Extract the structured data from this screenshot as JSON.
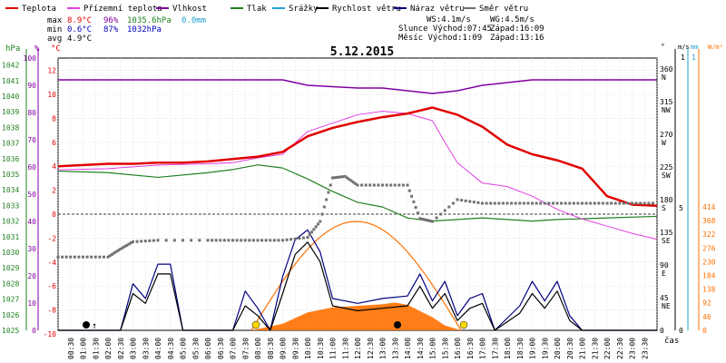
{
  "legend": [
    {
      "key": "temp",
      "label": "Teplota",
      "color": "#e00000"
    },
    {
      "key": "feels",
      "label": "Přízemní teplota",
      "color": "#e040e0"
    },
    {
      "key": "hum",
      "label": "Vlhkost",
      "color": "#8000a0"
    },
    {
      "key": "press",
      "label": "Tlak",
      "color": "#208020"
    },
    {
      "key": "rain",
      "label": "Srážky",
      "color": "#20a0d0"
    },
    {
      "key": "wind",
      "label": "Rychlost větru",
      "color": "#000000"
    },
    {
      "key": "gust",
      "label": "Náraz větru",
      "color": "#000080"
    },
    {
      "key": "dir",
      "label": "Směr větru",
      "color": "#707070"
    }
  ],
  "stats": {
    "max": {
      "label": "max",
      "temp": "8.9°C",
      "hum": "96%",
      "press": "1035.6hPa",
      "rain": "0.0mm"
    },
    "min": {
      "label": "min",
      "temp": "0.6°C",
      "hum": "87%",
      "press": "1032hPa"
    },
    "avg": {
      "label": "avg",
      "temp": "4.9°C"
    }
  },
  "info": {
    "ws": "WS:4.1m/s",
    "wg": "WG:4.5m/s",
    "sun_rise": "Slunce Východ:07:45",
    "sun_set": "Západ:16:09",
    "moon_rise": "Měsíc Východ:1:09",
    "moon_set": "Západ:13:16"
  },
  "title": "5.12.2015",
  "colors": {
    "temp": "#e00000",
    "feels": "#e040e0",
    "hum": "#8000a0",
    "press": "#208020",
    "rain": "#20a0d0",
    "wind": "#000000",
    "gust": "#000080",
    "dir": "#707070",
    "sun": "#ff7000",
    "moon": "#ff8c00",
    "grid": "#d0d0d0"
  },
  "axes": {
    "hpa": {
      "unit": "hPa",
      "ticks": [
        "1042",
        "1041",
        "1040",
        "1039",
        "1038",
        "1037",
        "1036",
        "1035",
        "1034",
        "1033",
        "1032",
        "1031",
        "1030",
        "1029",
        "1028",
        "1027",
        "1026",
        "1025"
      ]
    },
    "pct": {
      "unit": "%",
      "ticks": [
        "100",
        "90",
        "80",
        "70",
        "60",
        "50",
        "40",
        "30",
        "20",
        "10",
        "0"
      ]
    },
    "degc": {
      "unit": "°C",
      "ticks": [
        "12",
        "10",
        "8",
        "6",
        "4",
        "2",
        "0",
        "-2",
        "-4",
        "-6",
        "-8",
        "-10"
      ]
    },
    "deg": {
      "unit": "°",
      "ticks": [
        {
          "v": "360",
          "s": "N"
        },
        {
          "v": "315",
          "s": "NW"
        },
        {
          "v": "270",
          "s": "W"
        },
        {
          "v": "225",
          "s": "SW"
        },
        {
          "v": "180",
          "s": "S"
        },
        {
          "v": "135",
          "s": "SE"
        },
        {
          "v": "90",
          "s": "E"
        },
        {
          "v": "45",
          "s": "NE"
        },
        {
          "v": "0",
          "s": ""
        }
      ]
    },
    "ms": {
      "unit": "m/s",
      "top": "1",
      "ticks": [
        "5",
        "0"
      ]
    },
    "mm": {
      "unit": "mm",
      "top": "1"
    },
    "wm2": {
      "unit": "W/m²",
      "ticks": [
        "414",
        "368",
        "322",
        "276",
        "230",
        "184",
        "138",
        "92",
        "46",
        "0"
      ]
    },
    "time_label": "čas",
    "times": [
      "00:30",
      "01:00",
      "01:30",
      "02:00",
      "02:30",
      "03:00",
      "03:30",
      "04:00",
      "04:30",
      "05:00",
      "05:30",
      "06:00",
      "06:30",
      "07:00",
      "07:30",
      "08:00",
      "08:30",
      "09:00",
      "09:30",
      "10:00",
      "10:30",
      "11:00",
      "11:30",
      "12:00",
      "12:30",
      "13:00",
      "13:30",
      "14:00",
      "14:30",
      "15:00",
      "15:30",
      "16:00",
      "16:30",
      "17:00",
      "17:30",
      "18:00",
      "18:30",
      "19:00",
      "19:30",
      "20:00",
      "20:30",
      "21:00",
      "21:30",
      "22:00",
      "22:30",
      "23:00",
      "23:30"
    ]
  },
  "chart_data": {
    "type": "line",
    "title": "5.12.2015",
    "x_unit": "hour of day",
    "xlim": [
      0,
      24
    ],
    "series": [
      {
        "name": "Teplota",
        "axis": "°C",
        "points": [
          [
            0,
            4
          ],
          [
            1,
            4.1
          ],
          [
            2,
            4.2
          ],
          [
            3,
            4.2
          ],
          [
            4,
            4.3
          ],
          [
            5,
            4.3
          ],
          [
            6,
            4.4
          ],
          [
            7,
            4.6
          ],
          [
            8,
            4.8
          ],
          [
            9,
            5.2
          ],
          [
            10,
            6.5
          ],
          [
            11,
            7.2
          ],
          [
            12,
            7.7
          ],
          [
            13,
            8.1
          ],
          [
            14,
            8.4
          ],
          [
            15,
            8.9
          ],
          [
            16,
            8.3
          ],
          [
            17,
            7.3
          ],
          [
            18,
            5.8
          ],
          [
            19,
            5.0
          ],
          [
            20,
            4.5
          ],
          [
            21,
            3.8
          ],
          [
            22,
            1.5
          ],
          [
            23,
            0.8
          ],
          [
            24,
            0.7
          ]
        ]
      },
      {
        "name": "Přízemní teplota",
        "axis": "°C",
        "points": [
          [
            0,
            3.7
          ],
          [
            2,
            3.8
          ],
          [
            4,
            4.1
          ],
          [
            6,
            4.2
          ],
          [
            7,
            4.3
          ],
          [
            8,
            4.7
          ],
          [
            9,
            5.0
          ],
          [
            10,
            6.9
          ],
          [
            11,
            7.6
          ],
          [
            12,
            8.3
          ],
          [
            13,
            8.6
          ],
          [
            14,
            8.4
          ],
          [
            15,
            7.8
          ],
          [
            15.5,
            6.0
          ],
          [
            16,
            4.3
          ],
          [
            17,
            2.6
          ],
          [
            18,
            2.3
          ],
          [
            19,
            1.5
          ],
          [
            20,
            0.4
          ],
          [
            21,
            -0.4
          ],
          [
            22,
            -1.0
          ],
          [
            23,
            -1.6
          ],
          [
            24,
            -2.1
          ]
        ]
      },
      {
        "name": "Vlhkost",
        "axis": "%",
        "points": [
          [
            0,
            92
          ],
          [
            9,
            92
          ],
          [
            10,
            90
          ],
          [
            12,
            89
          ],
          [
            13,
            89
          ],
          [
            14,
            88
          ],
          [
            15,
            87
          ],
          [
            16,
            88
          ],
          [
            17,
            90
          ],
          [
            18,
            91
          ],
          [
            19,
            92
          ],
          [
            24,
            92
          ]
        ]
      },
      {
        "name": "Tlak",
        "axis": "hPa",
        "points": [
          [
            0,
            1035.2
          ],
          [
            2,
            1035.1
          ],
          [
            4,
            1034.8
          ],
          [
            6,
            1035.1
          ],
          [
            7,
            1035.3
          ],
          [
            8,
            1035.6
          ],
          [
            9,
            1035.4
          ],
          [
            10,
            1034.7
          ],
          [
            11,
            1033.9
          ],
          [
            12,
            1033.2
          ],
          [
            13,
            1032.9
          ],
          [
            14,
            1032.2
          ],
          [
            15,
            1032.0
          ],
          [
            16,
            1032.1
          ],
          [
            17,
            1032.2
          ],
          [
            18,
            1032.1
          ],
          [
            19,
            1032.0
          ],
          [
            20,
            1032.1
          ],
          [
            22,
            1032.2
          ],
          [
            24,
            1032.3
          ]
        ]
      },
      {
        "name": "Rychlost větru",
        "axis": "m/s",
        "points": [
          [
            0,
            0
          ],
          [
            2.5,
            0
          ],
          [
            3,
            1.5
          ],
          [
            3.5,
            1.1
          ],
          [
            4,
            2.3
          ],
          [
            4.5,
            2.3
          ],
          [
            5,
            0
          ],
          [
            7,
            0
          ],
          [
            7.5,
            1.0
          ],
          [
            8,
            0.6
          ],
          [
            8.5,
            0
          ],
          [
            9,
            1.5
          ],
          [
            9.5,
            3.1
          ],
          [
            10,
            3.6
          ],
          [
            10.5,
            2.8
          ],
          [
            11,
            1.0
          ],
          [
            12,
            0.8
          ],
          [
            13,
            0.9
          ],
          [
            14,
            1.0
          ],
          [
            14.5,
            1.8
          ],
          [
            15,
            0.9
          ],
          [
            15.5,
            1.5
          ],
          [
            16,
            0.4
          ],
          [
            16.5,
            0.9
          ],
          [
            17,
            1.1
          ],
          [
            17.5,
            0
          ],
          [
            18.5,
            0.7
          ],
          [
            19,
            1.5
          ],
          [
            19.5,
            0.9
          ],
          [
            20,
            1.6
          ],
          [
            20.5,
            0.4
          ],
          [
            21,
            0
          ],
          [
            24,
            0
          ]
        ]
      },
      {
        "name": "Náraz větru",
        "axis": "m/s",
        "points": [
          [
            0,
            0
          ],
          [
            2.5,
            0
          ],
          [
            3,
            1.9
          ],
          [
            3.5,
            1.3
          ],
          [
            4,
            2.7
          ],
          [
            4.5,
            2.7
          ],
          [
            5,
            0
          ],
          [
            7,
            0
          ],
          [
            7.5,
            1.6
          ],
          [
            8,
            0.9
          ],
          [
            8.5,
            0
          ],
          [
            9,
            2.2
          ],
          [
            9.5,
            3.7
          ],
          [
            10,
            4.1
          ],
          [
            10.5,
            3.2
          ],
          [
            11,
            1.3
          ],
          [
            12,
            1.1
          ],
          [
            13,
            1.3
          ],
          [
            14,
            1.4
          ],
          [
            14.5,
            2.3
          ],
          [
            15,
            1.2
          ],
          [
            15.5,
            2.0
          ],
          [
            16,
            0.6
          ],
          [
            16.5,
            1.3
          ],
          [
            17,
            1.5
          ],
          [
            17.5,
            0
          ],
          [
            18.5,
            1.0
          ],
          [
            19,
            2.0
          ],
          [
            19.5,
            1.2
          ],
          [
            20,
            2.0
          ],
          [
            20.5,
            0.6
          ],
          [
            21,
            0
          ],
          [
            24,
            0
          ]
        ]
      },
      {
        "name": "Směr větru",
        "axis": "°",
        "points": [
          [
            0,
            101
          ],
          [
            1,
            101
          ],
          [
            2,
            101
          ],
          [
            2.5,
            112
          ],
          [
            3,
            122
          ],
          [
            4,
            124
          ],
          [
            6,
            124
          ],
          [
            7,
            124
          ],
          [
            8,
            124
          ],
          [
            9,
            124
          ],
          [
            10,
            128
          ],
          [
            10.5,
            150
          ],
          [
            11,
            210
          ],
          [
            11.5,
            212
          ],
          [
            12,
            200
          ],
          [
            13,
            200
          ],
          [
            14,
            200
          ],
          [
            14.5,
            154
          ],
          [
            15,
            150
          ],
          [
            16,
            180
          ],
          [
            17,
            175
          ],
          [
            18,
            175
          ],
          [
            19,
            175
          ],
          [
            20,
            175
          ],
          [
            21,
            175
          ],
          [
            22,
            175
          ],
          [
            23,
            175
          ],
          [
            24,
            175
          ]
        ]
      }
    ],
    "solar_radiation": {
      "axis": "W/m²",
      "points": [
        [
          7.75,
          0
        ],
        [
          9,
          20
        ],
        [
          10,
          55
        ],
        [
          11,
          70
        ],
        [
          12,
          75
        ],
        [
          13,
          80
        ],
        [
          13.5,
          85
        ],
        [
          14,
          78
        ],
        [
          15,
          40
        ],
        [
          15.5,
          15
        ],
        [
          16.15,
          0
        ]
      ]
    },
    "sun_elevation_curve": {
      "rise": "07:45",
      "set": "16:09"
    }
  }
}
